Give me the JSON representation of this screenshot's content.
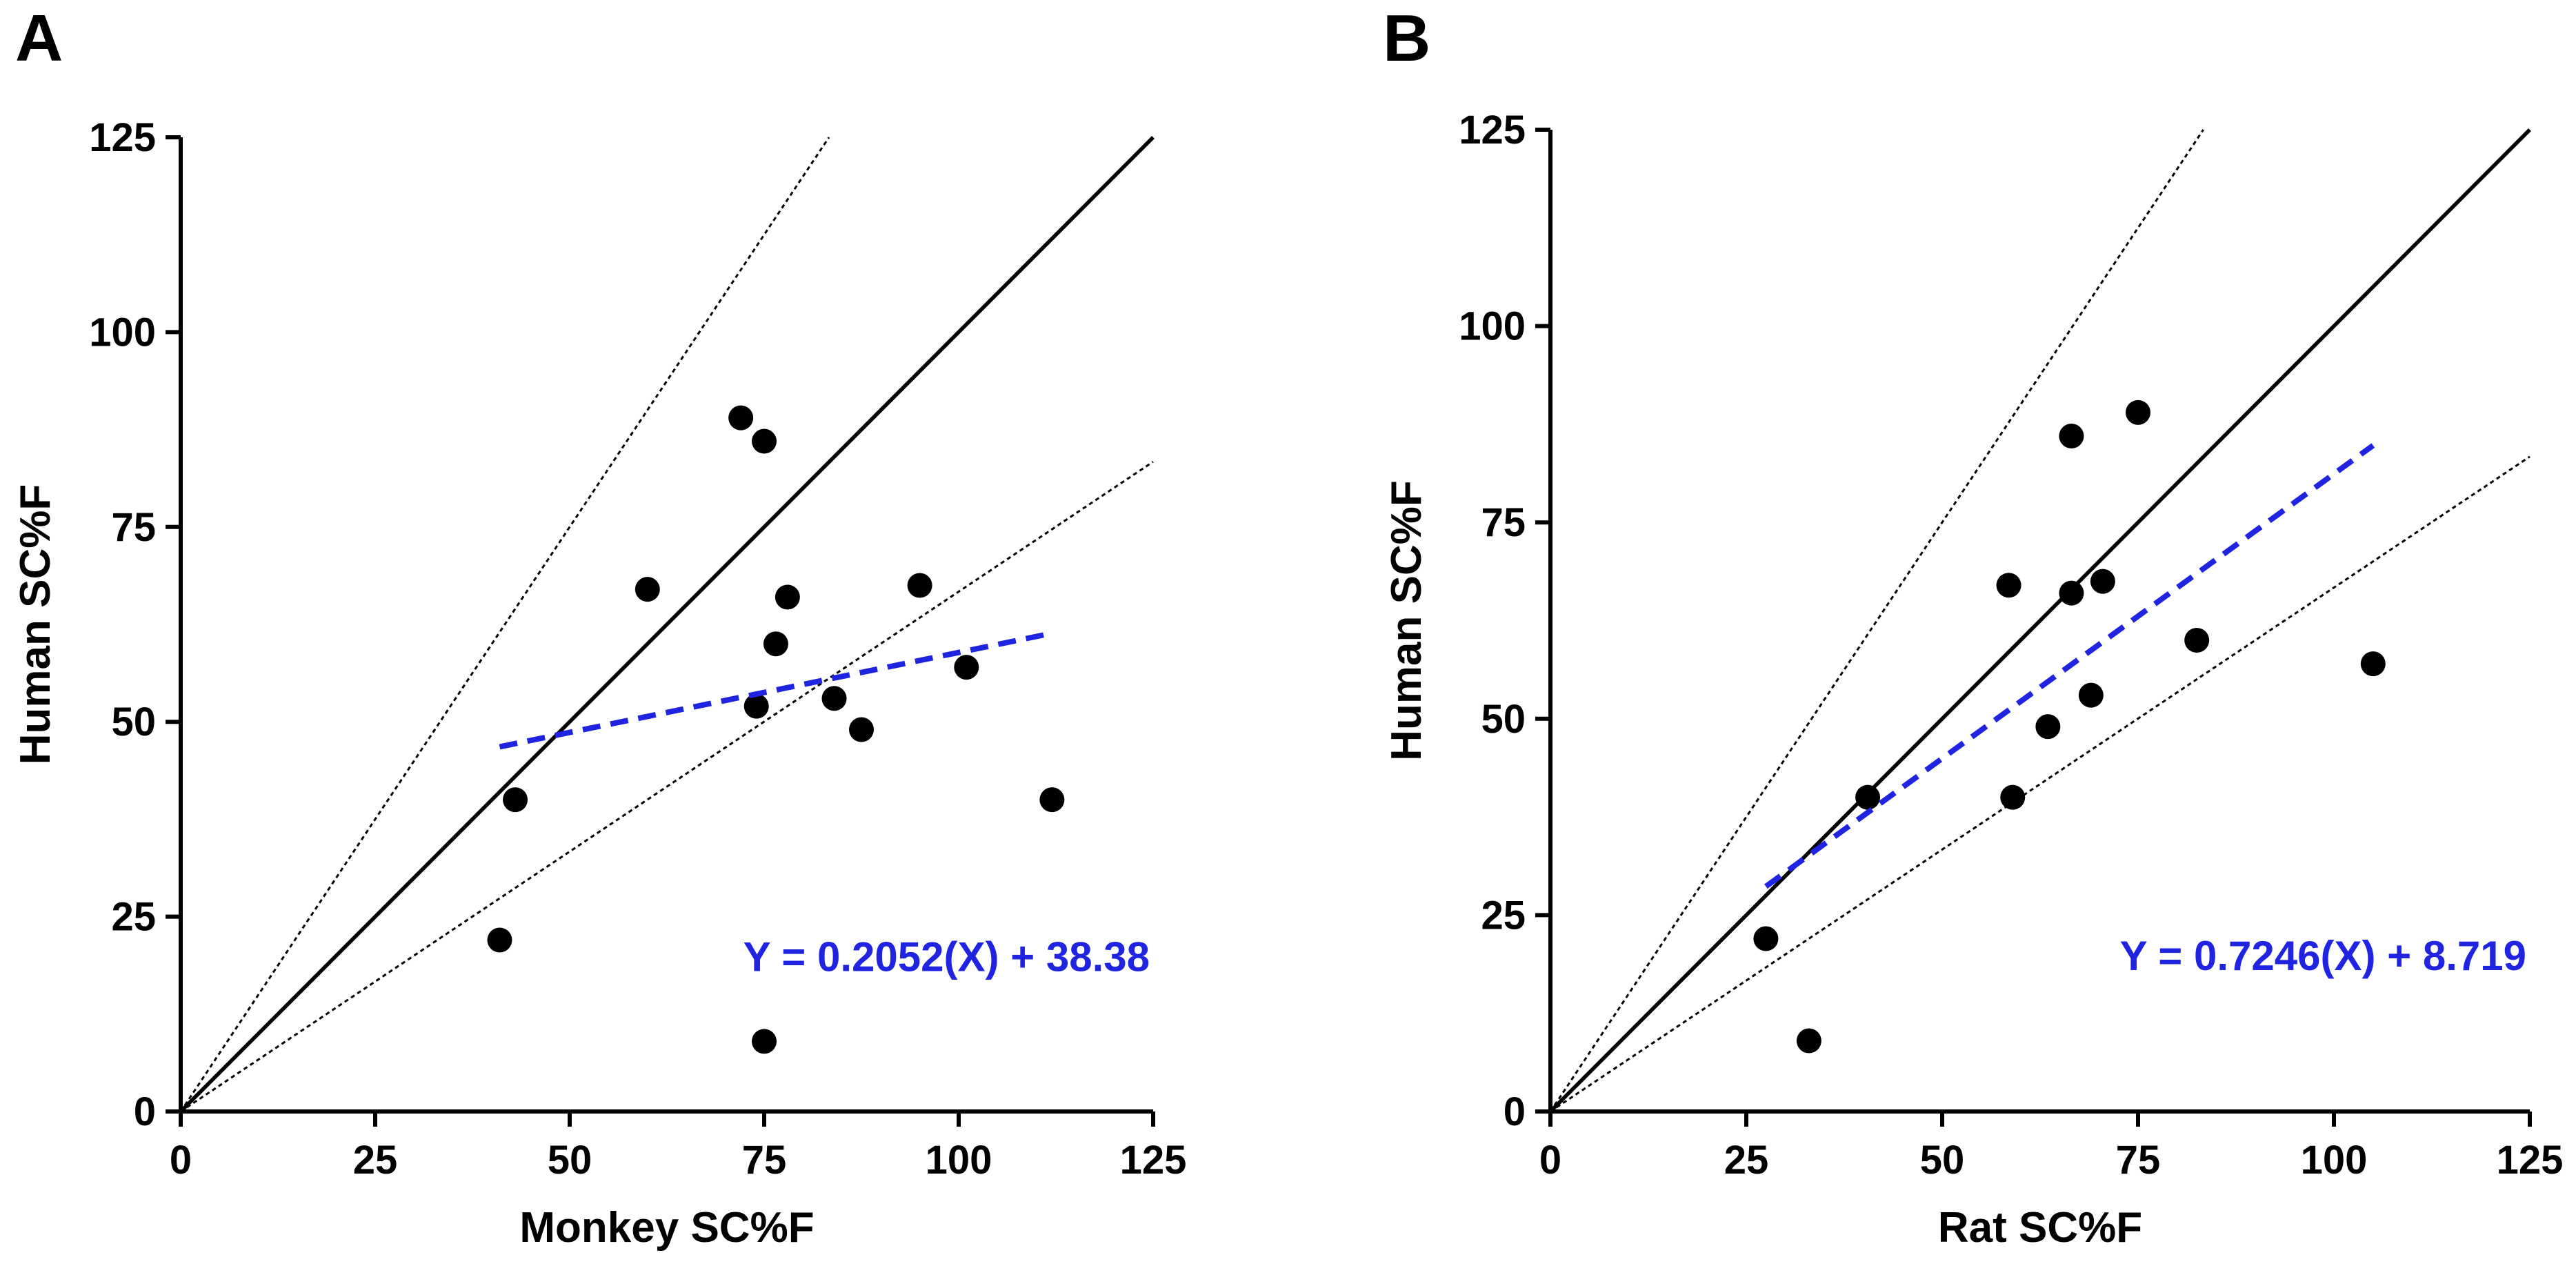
{
  "chart_data": [
    {
      "type": "scatter",
      "panel_label": "A",
      "xlabel": "Monkey SC%F",
      "ylabel": "Human SC%F",
      "xlim": [
        0,
        125
      ],
      "ylim": [
        0,
        125
      ],
      "xticks": [
        0,
        25,
        50,
        75,
        100,
        125
      ],
      "yticks": [
        0,
        25,
        50,
        75,
        100,
        125
      ],
      "grid": false,
      "points": [
        {
          "x": 41,
          "y": 22
        },
        {
          "x": 43,
          "y": 40
        },
        {
          "x": 60,
          "y": 67
        },
        {
          "x": 72,
          "y": 89
        },
        {
          "x": 75,
          "y": 86
        },
        {
          "x": 74,
          "y": 52
        },
        {
          "x": 76.5,
          "y": 60
        },
        {
          "x": 78,
          "y": 66
        },
        {
          "x": 75,
          "y": 9
        },
        {
          "x": 84,
          "y": 53
        },
        {
          "x": 87.5,
          "y": 49
        },
        {
          "x": 95,
          "y": 67.5
        },
        {
          "x": 101,
          "y": 57
        },
        {
          "x": 112,
          "y": 40
        }
      ],
      "identity_line": {
        "slope": 1,
        "intercept": 0
      },
      "bound_lines": [
        {
          "slope": 1.5,
          "intercept": 0
        },
        {
          "slope": 0.667,
          "intercept": 0
        }
      ],
      "regression": {
        "slope": 0.2052,
        "intercept": 38.38,
        "x_range": [
          41,
          112
        ],
        "color": "#1f24e0"
      },
      "equation_text": "Y = 0.2052(X) + 38.38"
    },
    {
      "type": "scatter",
      "panel_label": "B",
      "xlabel": "Rat SC%F",
      "ylabel": "Human SC%F",
      "xlim": [
        0,
        125
      ],
      "ylim": [
        0,
        125
      ],
      "xticks": [
        0,
        25,
        50,
        75,
        100,
        125
      ],
      "yticks": [
        0,
        25,
        50,
        75,
        100,
        125
      ],
      "grid": false,
      "points": [
        {
          "x": 27.5,
          "y": 22
        },
        {
          "x": 33,
          "y": 9
        },
        {
          "x": 40.5,
          "y": 40
        },
        {
          "x": 58.5,
          "y": 67
        },
        {
          "x": 59,
          "y": 40
        },
        {
          "x": 63.5,
          "y": 49
        },
        {
          "x": 66.5,
          "y": 86
        },
        {
          "x": 66.5,
          "y": 66
        },
        {
          "x": 69,
          "y": 53
        },
        {
          "x": 70.5,
          "y": 67.5
        },
        {
          "x": 75,
          "y": 89
        },
        {
          "x": 82.5,
          "y": 60
        },
        {
          "x": 105,
          "y": 57
        }
      ],
      "identity_line": {
        "slope": 1,
        "intercept": 0
      },
      "bound_lines": [
        {
          "slope": 1.5,
          "intercept": 0
        },
        {
          "slope": 0.667,
          "intercept": 0
        }
      ],
      "regression": {
        "slope": 0.7246,
        "intercept": 8.719,
        "x_range": [
          27.5,
          105
        ],
        "color": "#1f24e0"
      },
      "equation_text": "Y = 0.7246(X) + 8.719"
    }
  ]
}
